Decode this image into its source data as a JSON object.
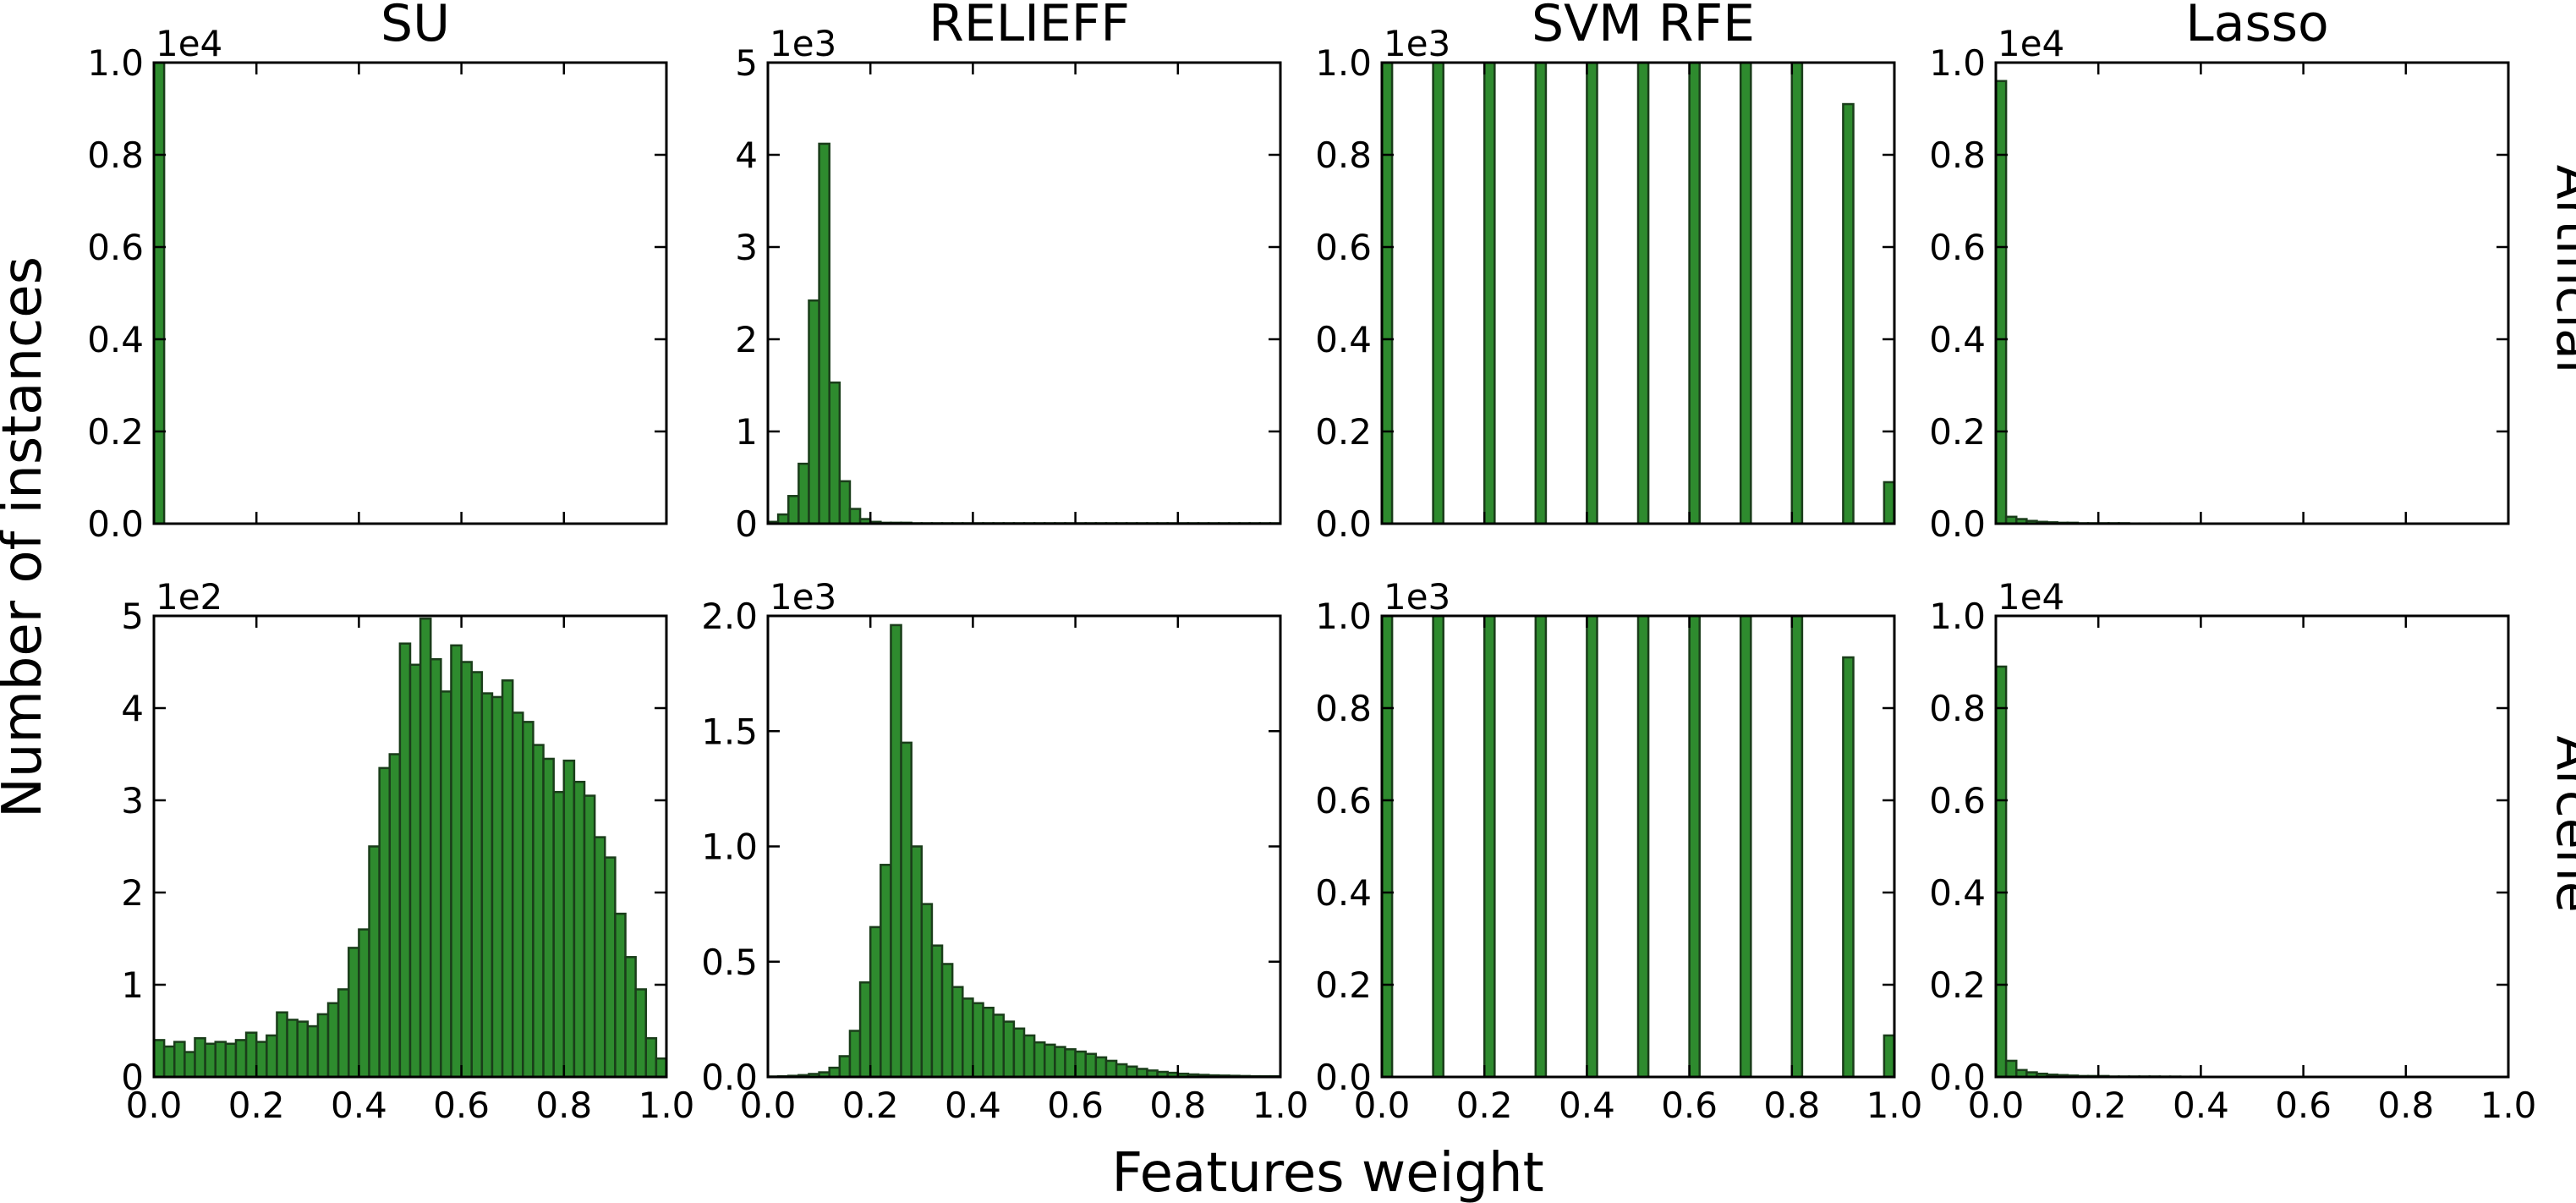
{
  "figure": {
    "xlabel": "Features weight",
    "ylabel": "Number of instances",
    "column_titles": [
      "SU",
      "RELIEFF",
      "SVM RFE",
      "Lasso"
    ],
    "row_labels": [
      "Artificial",
      "Arcene"
    ],
    "bar_color": "#2e8b2e",
    "edge_color": "#1a3d1a"
  },
  "chart_data": [
    {
      "type": "bar",
      "method": "SU",
      "dataset": "Artificial",
      "xlim": [
        0,
        1
      ],
      "ylim": [
        0,
        1.0
      ],
      "scale_label": "1e4",
      "xticks": [
        "0.0",
        "0.2",
        "0.4",
        "0.6",
        "0.8",
        "1.0"
      ],
      "show_xticks": false,
      "yticks": [
        "0.0",
        "0.2",
        "0.4",
        "0.6",
        "0.8",
        "1.0"
      ],
      "bin_width": 0.02,
      "values": [
        1.0
      ]
    },
    {
      "type": "bar",
      "method": "RELIEFF",
      "dataset": "Artificial",
      "xlim": [
        0,
        1
      ],
      "ylim": [
        0,
        5
      ],
      "scale_label": "1e3",
      "xticks": [
        "0.0",
        "0.2",
        "0.4",
        "0.6",
        "0.8",
        "1.0"
      ],
      "show_xticks": false,
      "yticks": [
        "0",
        "1",
        "2",
        "3",
        "4",
        "5"
      ],
      "bin_width": 0.02,
      "values": [
        0.02,
        0.1,
        0.3,
        0.65,
        2.42,
        4.12,
        1.53,
        0.46,
        0.16,
        0.05,
        0.02,
        0.01,
        0.01,
        0.01,
        0.005,
        0.005,
        0.005,
        0.005,
        0.005,
        0.005,
        0.005,
        0.005,
        0.005,
        0.005,
        0.005,
        0.005,
        0.005,
        0.005,
        0.005,
        0.005,
        0.005,
        0.005,
        0.005,
        0.005,
        0.005,
        0.005,
        0.005,
        0.005,
        0.005,
        0.005,
        0.005,
        0.005,
        0.005,
        0.005,
        0.005,
        0.005,
        0.005,
        0.005,
        0.005,
        0.005
      ]
    },
    {
      "type": "bar",
      "method": "SVM RFE",
      "dataset": "Artificial",
      "xlim": [
        0,
        1
      ],
      "ylim": [
        0,
        1.0
      ],
      "scale_label": "1e3",
      "xticks": [
        "0.0",
        "0.2",
        "0.4",
        "0.6",
        "0.8",
        "1.0"
      ],
      "show_xticks": false,
      "yticks": [
        "0.0",
        "0.2",
        "0.4",
        "0.6",
        "0.8",
        "1.0"
      ],
      "bin_width": 0.02,
      "values": [
        1.0,
        0,
        0,
        0,
        0,
        1.0,
        0,
        0,
        0,
        0,
        1.0,
        0,
        0,
        0,
        0,
        1.0,
        0,
        0,
        0,
        0,
        1.0,
        0,
        0,
        0,
        0,
        1.0,
        0,
        0,
        0,
        0,
        1.0,
        0,
        0,
        0,
        0,
        1.0,
        0,
        0,
        0,
        0,
        1.0,
        0,
        0,
        0,
        0,
        0.91,
        0,
        0,
        0,
        0.09
      ]
    },
    {
      "type": "bar",
      "method": "Lasso",
      "dataset": "Artificial",
      "xlim": [
        0,
        1
      ],
      "ylim": [
        0,
        1.0
      ],
      "scale_label": "1e4",
      "xticks": [
        "0.0",
        "0.2",
        "0.4",
        "0.6",
        "0.8",
        "1.0"
      ],
      "show_xticks": false,
      "yticks": [
        "0.0",
        "0.2",
        "0.4",
        "0.6",
        "0.8",
        "1.0"
      ],
      "bin_width": 0.02,
      "values": [
        0.96,
        0.015,
        0.01,
        0.006,
        0.004,
        0.003,
        0.002,
        0.002,
        0.001,
        0.001,
        0.001,
        0.001,
        0.001,
        0.0005,
        0.0005,
        0.0005,
        0.0005,
        0.0005,
        0.0005,
        0.0005
      ]
    },
    {
      "type": "bar",
      "method": "SU",
      "dataset": "Arcene",
      "xlim": [
        0,
        1
      ],
      "ylim": [
        0,
        5
      ],
      "scale_label": "1e2",
      "xticks": [
        "0.0",
        "0.2",
        "0.4",
        "0.6",
        "0.8",
        "1.0"
      ],
      "show_xticks": true,
      "yticks": [
        "0",
        "1",
        "2",
        "3",
        "4",
        "5"
      ],
      "bin_width": 0.02,
      "values": [
        0.4,
        0.33,
        0.38,
        0.27,
        0.42,
        0.36,
        0.38,
        0.36,
        0.4,
        0.48,
        0.38,
        0.45,
        0.7,
        0.62,
        0.6,
        0.55,
        0.68,
        0.8,
        0.95,
        1.4,
        1.6,
        2.5,
        3.35,
        3.5,
        4.7,
        4.47,
        4.97,
        4.53,
        4.18,
        4.68,
        4.5,
        4.39,
        4.16,
        4.12,
        4.3,
        3.95,
        3.85,
        3.6,
        3.45,
        3.09,
        3.43,
        3.2,
        3.05,
        2.6,
        2.38,
        1.77,
        1.3,
        0.95,
        0.42,
        0.2
      ]
    },
    {
      "type": "bar",
      "method": "RELIEFF",
      "dataset": "Arcene",
      "xlim": [
        0,
        1
      ],
      "ylim": [
        0,
        2.0
      ],
      "scale_label": "1e3",
      "xticks": [
        "0.0",
        "0.2",
        "0.4",
        "0.6",
        "0.8",
        "1.0"
      ],
      "show_xticks": true,
      "yticks": [
        "0.0",
        "0.5",
        "1.0",
        "1.5",
        "2.0"
      ],
      "bin_width": 0.02,
      "values": [
        0.002,
        0.003,
        0.005,
        0.008,
        0.013,
        0.02,
        0.04,
        0.09,
        0.2,
        0.41,
        0.65,
        0.92,
        1.96,
        1.45,
        1.0,
        0.75,
        0.57,
        0.49,
        0.39,
        0.34,
        0.32,
        0.3,
        0.27,
        0.24,
        0.21,
        0.18,
        0.15,
        0.14,
        0.13,
        0.12,
        0.11,
        0.1,
        0.085,
        0.07,
        0.055,
        0.045,
        0.035,
        0.028,
        0.022,
        0.018,
        0.014,
        0.011,
        0.009,
        0.007,
        0.006,
        0.005,
        0.004,
        0.003,
        0.003,
        0.003
      ]
    },
    {
      "type": "bar",
      "method": "SVM RFE",
      "dataset": "Arcene",
      "xlim": [
        0,
        1
      ],
      "ylim": [
        0,
        1.0
      ],
      "scale_label": "1e3",
      "xticks": [
        "0.0",
        "0.2",
        "0.4",
        "0.6",
        "0.8",
        "1.0"
      ],
      "show_xticks": true,
      "yticks": [
        "0.0",
        "0.2",
        "0.4",
        "0.6",
        "0.8",
        "1.0"
      ],
      "bin_width": 0.02,
      "values": [
        1.0,
        0,
        0,
        0,
        0,
        1.0,
        0,
        0,
        0,
        0,
        1.0,
        0,
        0,
        0,
        0,
        1.0,
        0,
        0,
        0,
        0,
        1.0,
        0,
        0,
        0,
        0,
        1.0,
        0,
        0,
        0,
        0,
        1.0,
        0,
        0,
        0,
        0,
        1.0,
        0,
        0,
        0,
        0,
        1.0,
        0,
        0,
        0,
        0,
        0.91,
        0,
        0,
        0,
        0.09
      ]
    },
    {
      "type": "bar",
      "method": "Lasso",
      "dataset": "Arcene",
      "xlim": [
        0,
        1
      ],
      "ylim": [
        0,
        1.0
      ],
      "scale_label": "1e4",
      "xticks": [
        "0.0",
        "0.2",
        "0.4",
        "0.6",
        "0.8",
        "1.0"
      ],
      "show_xticks": true,
      "yticks": [
        "0.0",
        "0.2",
        "0.4",
        "0.6",
        "0.8",
        "1.0"
      ],
      "bin_width": 0.02,
      "values": [
        0.89,
        0.035,
        0.015,
        0.01,
        0.007,
        0.005,
        0.004,
        0.003,
        0.002,
        0.002,
        0.002,
        0.001,
        0.001,
        0.001,
        0.001,
        0.001,
        0.0008,
        0.0008,
        0.0006,
        0.0006
      ]
    }
  ]
}
